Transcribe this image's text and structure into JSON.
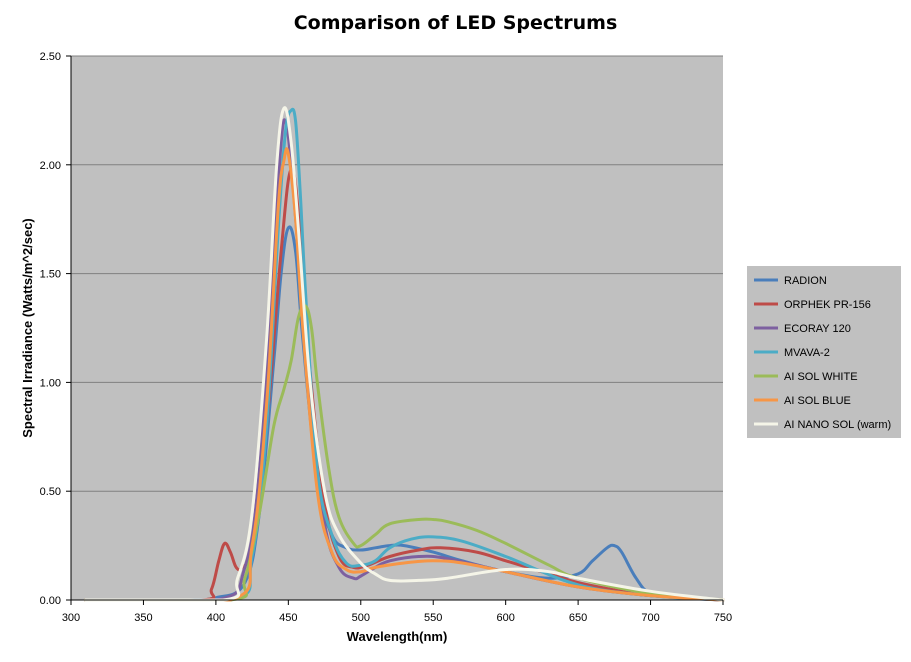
{
  "chart_data": {
    "type": "line",
    "title": "Comparison of LED Spectrums",
    "xlabel": "Wavelength(nm)",
    "ylabel": "Spectral Irradiance (Watts/m^2/sec)",
    "xlim": [
      300,
      750
    ],
    "ylim": [
      0,
      2.5
    ],
    "x_ticks": [
      "300",
      "350",
      "400",
      "450",
      "500",
      "550",
      "600",
      "650",
      "700",
      "750"
    ],
    "y_ticks": [
      "0.00",
      "0.50",
      "1.00",
      "1.50",
      "2.00",
      "2.50"
    ],
    "grid": true,
    "legend_position": "right",
    "plot_background": "#c0c0c0",
    "series": [
      {
        "name": "RADION",
        "color": "#4a7ebb",
        "x": [
          310,
          380,
          400,
          420,
          430,
          440,
          445,
          450,
          455,
          460,
          470,
          480,
          490,
          500,
          510,
          520,
          530,
          550,
          570,
          600,
          630,
          650,
          660,
          670,
          675,
          680,
          690,
          700,
          720,
          750
        ],
        "y": [
          0,
          0,
          0.01,
          0.08,
          0.4,
          1.1,
          1.5,
          1.71,
          1.6,
          1.2,
          0.55,
          0.3,
          0.24,
          0.23,
          0.24,
          0.25,
          0.25,
          0.22,
          0.18,
          0.13,
          0.1,
          0.12,
          0.18,
          0.24,
          0.25,
          0.22,
          0.1,
          0.03,
          0.01,
          0
        ]
      },
      {
        "name": "ORPHEK PR-156",
        "color": "#be4b48",
        "x": [
          310,
          390,
          397,
          402,
          406,
          410,
          414,
          418,
          425,
          435,
          445,
          452,
          458,
          465,
          475,
          485,
          495,
          505,
          520,
          540,
          555,
          580,
          600,
          630,
          650,
          680,
          700,
          750
        ],
        "y": [
          0,
          0,
          0.05,
          0.18,
          0.26,
          0.22,
          0.15,
          0.15,
          0.25,
          0.8,
          1.6,
          1.98,
          1.7,
          1.05,
          0.45,
          0.2,
          0.15,
          0.16,
          0.2,
          0.23,
          0.24,
          0.22,
          0.18,
          0.12,
          0.08,
          0.04,
          0.02,
          0
        ]
      },
      {
        "name": "ECORAY 120",
        "color": "#7d60a0",
        "x": [
          310,
          400,
          420,
          430,
          440,
          445,
          448,
          452,
          458,
          465,
          475,
          485,
          495,
          500,
          510,
          520,
          540,
          560,
          600,
          650,
          700,
          750
        ],
        "y": [
          0,
          0,
          0.15,
          0.6,
          1.6,
          2.1,
          2.2,
          2.0,
          1.5,
          0.9,
          0.35,
          0.15,
          0.1,
          0.11,
          0.15,
          0.18,
          0.2,
          0.19,
          0.13,
          0.06,
          0.02,
          0
        ]
      },
      {
        "name": "MVAVA-2",
        "color": "#4bacc6",
        "x": [
          310,
          410,
          425,
          435,
          443,
          448,
          452,
          455,
          458,
          462,
          470,
          480,
          490,
          500,
          510,
          520,
          535,
          550,
          570,
          600,
          650,
          700,
          750
        ],
        "y": [
          0,
          0,
          0.2,
          0.8,
          1.7,
          2.15,
          2.25,
          2.2,
          1.9,
          1.4,
          0.6,
          0.3,
          0.17,
          0.16,
          0.18,
          0.24,
          0.28,
          0.29,
          0.27,
          0.2,
          0.07,
          0.02,
          0
        ]
      },
      {
        "name": "AI SOL WHITE",
        "color": "#9bbb59",
        "x": [
          310,
          410,
          420,
          430,
          440,
          447,
          452,
          457,
          462,
          466,
          470,
          478,
          485,
          495,
          500,
          510,
          520,
          540,
          550,
          560,
          580,
          600,
          630,
          650,
          700,
          750
        ],
        "y": [
          0,
          0,
          0.1,
          0.4,
          0.8,
          0.97,
          1.1,
          1.3,
          1.35,
          1.25,
          1.0,
          0.6,
          0.38,
          0.26,
          0.25,
          0.3,
          0.35,
          0.37,
          0.37,
          0.36,
          0.32,
          0.26,
          0.16,
          0.1,
          0.03,
          0
        ]
      },
      {
        "name": "AI SOL BLUE",
        "color": "#f79646",
        "x": [
          310,
          410,
          425,
          435,
          443,
          447,
          450,
          455,
          460,
          470,
          480,
          490,
          500,
          510,
          530,
          550,
          570,
          600,
          650,
          700,
          750
        ],
        "y": [
          0,
          0,
          0.25,
          0.9,
          1.8,
          2.02,
          2.05,
          1.75,
          1.25,
          0.5,
          0.22,
          0.14,
          0.13,
          0.15,
          0.17,
          0.18,
          0.17,
          0.13,
          0.06,
          0.02,
          0
        ]
      },
      {
        "name": "AI NANO SOL (warm)",
        "color": "#f5f5e8",
        "x": [
          310,
          405,
          415,
          425,
          435,
          442,
          447,
          452,
          457,
          465,
          475,
          485,
          500,
          510,
          520,
          540,
          560,
          600,
          630,
          650,
          700,
          750
        ],
        "y": [
          0,
          0,
          0.1,
          0.4,
          1.2,
          2.0,
          2.26,
          2.1,
          1.7,
          1.0,
          0.5,
          0.3,
          0.17,
          0.12,
          0.09,
          0.09,
          0.1,
          0.14,
          0.13,
          0.1,
          0.04,
          0
        ]
      }
    ]
  }
}
